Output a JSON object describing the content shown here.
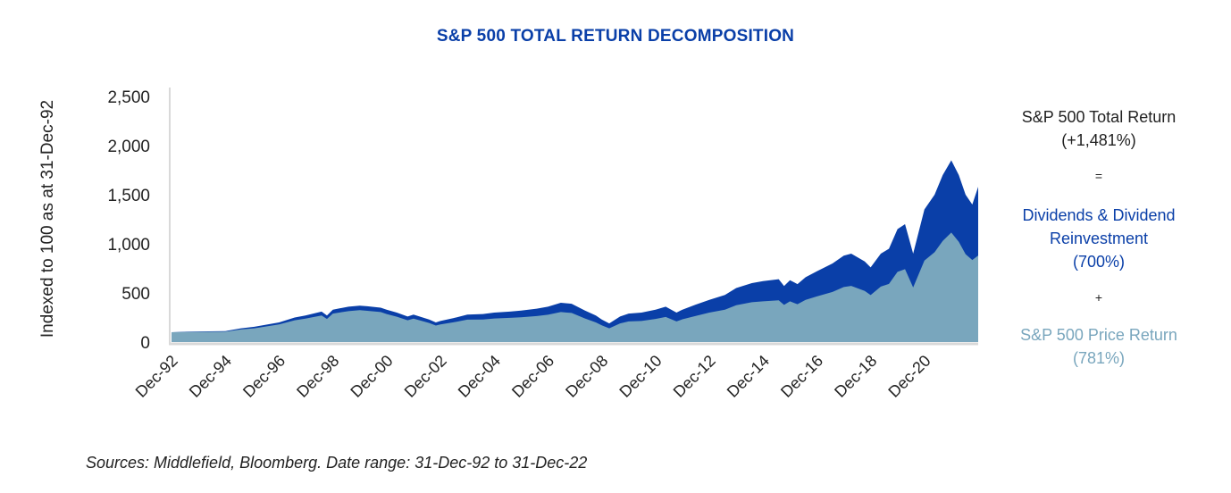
{
  "chart_data": {
    "type": "area",
    "title": "S&P 500 TOTAL RETURN DECOMPOSITION",
    "ylabel": "Indexed to 100 as at 31-Dec-92",
    "xlabel": "",
    "ylim": [
      0,
      2500
    ],
    "yticks": [
      "0",
      "500",
      "1,000",
      "1,500",
      "2,000",
      "2,500"
    ],
    "ytick_values": [
      0,
      500,
      1000,
      1500,
      2000,
      2500
    ],
    "xticks": [
      "Dec-92",
      "Dec-94",
      "Dec-96",
      "Dec-98",
      "Dec-00",
      "Dec-02",
      "Dec-04",
      "Dec-06",
      "Dec-08",
      "Dec-10",
      "Dec-12",
      "Dec-14",
      "Dec-16",
      "Dec-18",
      "Dec-20"
    ],
    "xtick_years": [
      1992.92,
      1994.92,
      1996.92,
      1998.92,
      2000.92,
      2002.92,
      2004.92,
      2006.92,
      2008.92,
      2010.92,
      2012.92,
      2014.92,
      2016.92,
      2018.92,
      2020.92
    ],
    "xlim": [
      1992.92,
      2022.92
    ],
    "grid": false,
    "x": [
      1992.92,
      1993.5,
      1994.0,
      1994.92,
      1995.5,
      1996.0,
      1996.92,
      1997.5,
      1997.9,
      1998.5,
      1998.7,
      1998.92,
      1999.5,
      1999.92,
      2000.2,
      2000.7,
      2000.92,
      2001.3,
      2001.7,
      2001.92,
      2002.5,
      2002.75,
      2002.92,
      2003.5,
      2003.92,
      2004.5,
      2004.92,
      2005.5,
      2005.92,
      2006.5,
      2006.92,
      2007.4,
      2007.8,
      2008.3,
      2008.7,
      2008.92,
      2009.2,
      2009.6,
      2009.92,
      2010.4,
      2010.92,
      2011.3,
      2011.7,
      2011.92,
      2012.4,
      2012.92,
      2013.5,
      2013.92,
      2014.5,
      2014.92,
      2015.5,
      2015.7,
      2015.92,
      2016.2,
      2016.5,
      2016.92,
      2017.5,
      2017.92,
      2018.2,
      2018.7,
      2018.92,
      2019.3,
      2019.6,
      2019.92,
      2020.2,
      2020.5,
      2020.92,
      2021.3,
      2021.6,
      2021.92,
      2022.2,
      2022.45,
      2022.7,
      2022.92
    ],
    "series": [
      {
        "name": "S&P 500 Total Return",
        "label": "S&P 500 Total Return (+1,481%)",
        "return_pct": 1481,
        "color": "#0a3fa8",
        "values": [
          100,
          105,
          108,
          112,
          140,
          155,
          200,
          250,
          270,
          310,
          270,
          330,
          360,
          370,
          365,
          350,
          330,
          300,
          260,
          280,
          230,
          200,
          215,
          250,
          280,
          285,
          300,
          310,
          320,
          340,
          360,
          400,
          390,
          320,
          270,
          230,
          190,
          260,
          290,
          300,
          330,
          360,
          300,
          330,
          380,
          430,
          480,
          550,
          600,
          620,
          640,
          570,
          630,
          590,
          660,
          720,
          800,
          880,
          900,
          820,
          760,
          900,
          950,
          1150,
          1200,
          900,
          1350,
          1500,
          1700,
          1850,
          1700,
          1500,
          1400,
          1581
        ]
      },
      {
        "name": "S&P 500 Price Return",
        "label": "S&P 500 Price Return (781%)",
        "return_pct": 781,
        "color": "#79a6bd",
        "values": [
          100,
          103,
          104,
          105,
          128,
          140,
          180,
          222,
          238,
          270,
          235,
          290,
          315,
          325,
          318,
          305,
          285,
          258,
          222,
          238,
          195,
          168,
          180,
          205,
          228,
          230,
          240,
          246,
          252,
          265,
          278,
          305,
          296,
          240,
          200,
          170,
          140,
          190,
          210,
          215,
          235,
          255,
          210,
          232,
          265,
          300,
          330,
          375,
          405,
          415,
          425,
          378,
          415,
          385,
          430,
          465,
          510,
          560,
          572,
          520,
          478,
          565,
          592,
          715,
          742,
          555,
          830,
          915,
          1030,
          1115,
          1020,
          895,
          835,
          881
        ]
      }
    ],
    "decomposition": {
      "total_line1": "S&P 500 Total Return",
      "total_line2": "(+1,481%)",
      "equals": "=",
      "dividends_line1": "Dividends & Dividend",
      "dividends_line2": "Reinvestment",
      "dividends_line3": "(700%)",
      "dividends_pct": 700,
      "plus": "+",
      "price_line1": "S&P 500 Price Return",
      "price_line2": "(781%)",
      "price_pct": 781
    },
    "colors": {
      "title": "#0a3fa8",
      "dividends": "#0a3fa8",
      "price": "#79a6bd",
      "axis": "#d9d9d9",
      "text": "#222222"
    },
    "source": "Sources: Middlefield, Bloomberg. Date range: 31-Dec-92 to 31-Dec-22"
  }
}
